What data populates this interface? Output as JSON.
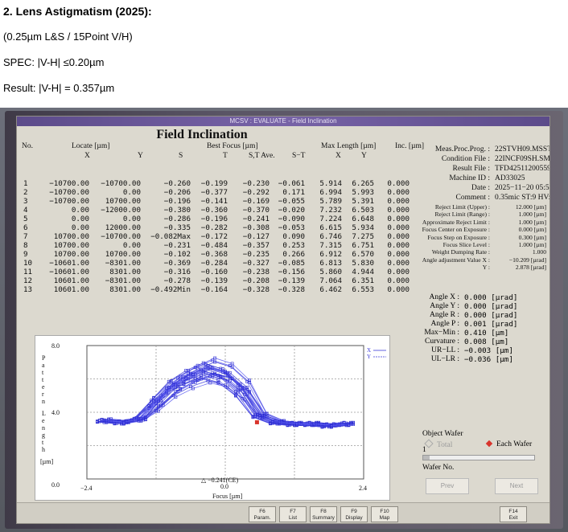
{
  "document": {
    "title": "2. Lens Astigmatism (2025):",
    "condition": "(0.25µm L&S / 15Point V/H)",
    "spec": "SPEC: |V-H| ≤0.20µm",
    "result": "Result: |V-H| = 0.357µm"
  },
  "window": {
    "title": "MCSV : EVALUATE - Field Inclination",
    "heading": "Field Inclination"
  },
  "table": {
    "headers": {
      "no": "No.",
      "locate": "Locate [µm]",
      "locate_x": "X",
      "locate_y": "Y",
      "s": "S",
      "best_focus": "Best  Focus [µm]",
      "t": "T",
      "st_ave": "S,T  Ave.",
      "s_minus_t": "S−T",
      "max_length": "Max  Length [µm]",
      "ml_x": "X",
      "ml_y": "Y",
      "inc": "Inc. [µm]"
    },
    "rows": [
      {
        "no": "1",
        "x": "−10700.00",
        "y": "−10700.00",
        "s": "−0.260",
        "t": "−0.199",
        "ave": "−0.230",
        "st": "−0.061",
        "mx": "5.914",
        "my": "6.265",
        "inc": "0.000"
      },
      {
        "no": "2",
        "x": "−10700.00",
        "y": "0.00",
        "s": "−0.206",
        "t": "−0.377",
        "ave": "−0.292",
        "st": "0.171",
        "mx": "6.994",
        "my": "5.993",
        "inc": "0.000"
      },
      {
        "no": "3",
        "x": "−10700.00",
        "y": "10700.00",
        "s": "−0.196",
        "t": "−0.141",
        "ave": "−0.169",
        "st": "−0.055",
        "mx": "5.789",
        "my": "5.391",
        "inc": "0.000"
      },
      {
        "no": "4",
        "x": "0.00",
        "y": "−12000.00",
        "s": "−0.380",
        "t": "−0.360",
        "ave": "−0.370",
        "st": "−0.020",
        "mx": "7.232",
        "my": "6.503",
        "inc": "0.000"
      },
      {
        "no": "5",
        "x": "0.00",
        "y": "0.00",
        "s": "−0.286",
        "t": "−0.196",
        "ave": "−0.241",
        "st": "−0.090",
        "mx": "7.224",
        "my": "6.648",
        "inc": "0.000"
      },
      {
        "no": "6",
        "x": "0.00",
        "y": "12000.00",
        "s": "−0.335",
        "t": "−0.282",
        "ave": "−0.308",
        "st": "−0.053",
        "mx": "6.615",
        "my": "5.934",
        "inc": "0.000"
      },
      {
        "no": "7",
        "x": "10700.00",
        "y": "−10700.00",
        "s": "−0.082Max",
        "t": "−0.172",
        "ave": "−0.127",
        "st": "0.090",
        "mx": "6.746",
        "my": "7.275",
        "inc": "0.000"
      },
      {
        "no": "8",
        "x": "10700.00",
        "y": "0.00",
        "s": "−0.231",
        "t": "−0.484",
        "ave": "−0.357",
        "st": "0.253",
        "mx": "7.315",
        "my": "6.751",
        "inc": "0.000"
      },
      {
        "no": "9",
        "x": "10700.00",
        "y": "10700.00",
        "s": "−0.102",
        "t": "−0.368",
        "ave": "−0.235",
        "st": "0.266",
        "mx": "6.912",
        "my": "6.570",
        "inc": "0.000"
      },
      {
        "no": "10",
        "x": "−10601.00",
        "y": "−8301.00",
        "s": "−0.369",
        "t": "−0.284",
        "ave": "−0.327",
        "st": "−0.085",
        "mx": "6.813",
        "my": "5.830",
        "inc": "0.000"
      },
      {
        "no": "11",
        "x": "−10601.00",
        "y": "8301.00",
        "s": "−0.316",
        "t": "−0.160",
        "ave": "−0.238",
        "st": "−0.156",
        "mx": "5.860",
        "my": "4.944",
        "inc": "0.000"
      },
      {
        "no": "12",
        "x": "10601.00",
        "y": "−8301.00",
        "s": "−0.278",
        "t": "−0.139",
        "ave": "−0.208",
        "st": "−0.139",
        "mx": "7.064",
        "my": "6.351",
        "inc": "0.000"
      },
      {
        "no": "13",
        "x": "10601.00",
        "y": "8301.00",
        "s": "−0.492Min",
        "t": "−0.164",
        "ave": "−0.328",
        "st": "−0.328",
        "mx": "6.462",
        "my": "6.553",
        "inc": "0.000"
      }
    ]
  },
  "info": [
    {
      "label": "Meas.Proc.Prog. :",
      "value": "22STVH09.MSSTVH09",
      "small": false
    },
    {
      "label": "Condition  File :",
      "value": "22INCF09SH.SMCP",
      "small": false
    },
    {
      "label": "Result  File :",
      "value": "TFD42511200559.MESI",
      "small": false
    },
    {
      "label": "Machine  ID :",
      "value": "AD33025",
      "small": false
    },
    {
      "label": "Date :",
      "value": "2025−11−20  05:59:00",
      "small": false
    },
    {
      "label": "Comment :",
      "value": "0.35mic  ST:9  HV:4  [",
      "small": false
    },
    {
      "label": "Reject Limit (Upper) :",
      "value": "12.000 [µm]",
      "small": true
    },
    {
      "label": "Reject Limit (Range) :",
      "value": "1.000 [µm]",
      "small": true
    },
    {
      "label": "Approximate Reject Limit :",
      "value": "1.000 [µm]",
      "small": true
    },
    {
      "label": "Focus Center on Exposure :",
      "value": "0.000 [µm]",
      "small": true
    },
    {
      "label": "Focus Step on Exposure :",
      "value": "0.300 [µm]",
      "small": true
    },
    {
      "label": "Focus Slice Level :",
      "value": "1.000 [µm]",
      "small": true
    },
    {
      "label": "Weight Dumping Rate :",
      "value": "1.000",
      "small": true
    },
    {
      "label": "Angle adjustment Value X :",
      "value": "−10.209 [µrad]",
      "small": true
    },
    {
      "label": "Y :",
      "value": "2.878 [µrad]",
      "small": true
    }
  ],
  "angles": [
    {
      "label": "Angle X :",
      "value": "0.000 [µrad]"
    },
    {
      "label": "Angle Y :",
      "value": "0.000 [µrad]"
    },
    {
      "label": "Angle R :",
      "value": "0.000 [µrad]"
    },
    {
      "label": "Angle P :",
      "value": "0.001 [µrad]"
    },
    {
      "label": "Max−Min :",
      "value": "0.410 [µm]"
    },
    {
      "label": "Curvature :",
      "value": "0.008 [µm]"
    },
    {
      "label": "UR−LL :",
      "value": "−0.003 [µm]"
    },
    {
      "label": "UL−LR :",
      "value": "−0.036 [µm]"
    }
  ],
  "chart_data": {
    "type": "line",
    "ylabel": "Pattern Length",
    "yunit": "[µm]",
    "xlabel": "Focus  [µm]",
    "xlim": [
      -2.4,
      2.4
    ],
    "ylim": [
      0.0,
      8.0
    ],
    "xticks": [
      "−2.4",
      "0.0",
      "2.4"
    ],
    "yticks": [
      "8.0",
      "4.0",
      "0.0"
    ],
    "legend": [
      "X",
      "Y"
    ],
    "annotation": "△ −0.241(CE)",
    "x": [
      -2.1,
      -1.8,
      -1.5,
      -1.2,
      -0.9,
      -0.6,
      -0.3,
      0.0,
      0.3,
      0.6,
      0.9,
      1.2,
      1.5,
      1.8,
      2.1
    ],
    "series_template": [
      3.5,
      3.4,
      3.6,
      4.6,
      5.6,
      6.2,
      6.6,
      6.3,
      5.4,
      3.8,
      3.4,
      3.3,
      3.3,
      3.2,
      3.3
    ],
    "series_count": 26
  },
  "object": {
    "label": "Object  Wafer",
    "total": "Total",
    "each": "Each  Wafer",
    "wafer_value": "1",
    "wafer_no": "Wafer  No.",
    "prev": "Prev",
    "next": "Next"
  },
  "fkeys": [
    {
      "key": "F6",
      "label": "Param."
    },
    {
      "key": "F7",
      "label": "List"
    },
    {
      "key": "F8",
      "label": "Summary"
    },
    {
      "key": "F9",
      "label": "Display"
    },
    {
      "key": "F10",
      "label": "Map"
    },
    {
      "key": "F14",
      "label": "Exit"
    }
  ]
}
